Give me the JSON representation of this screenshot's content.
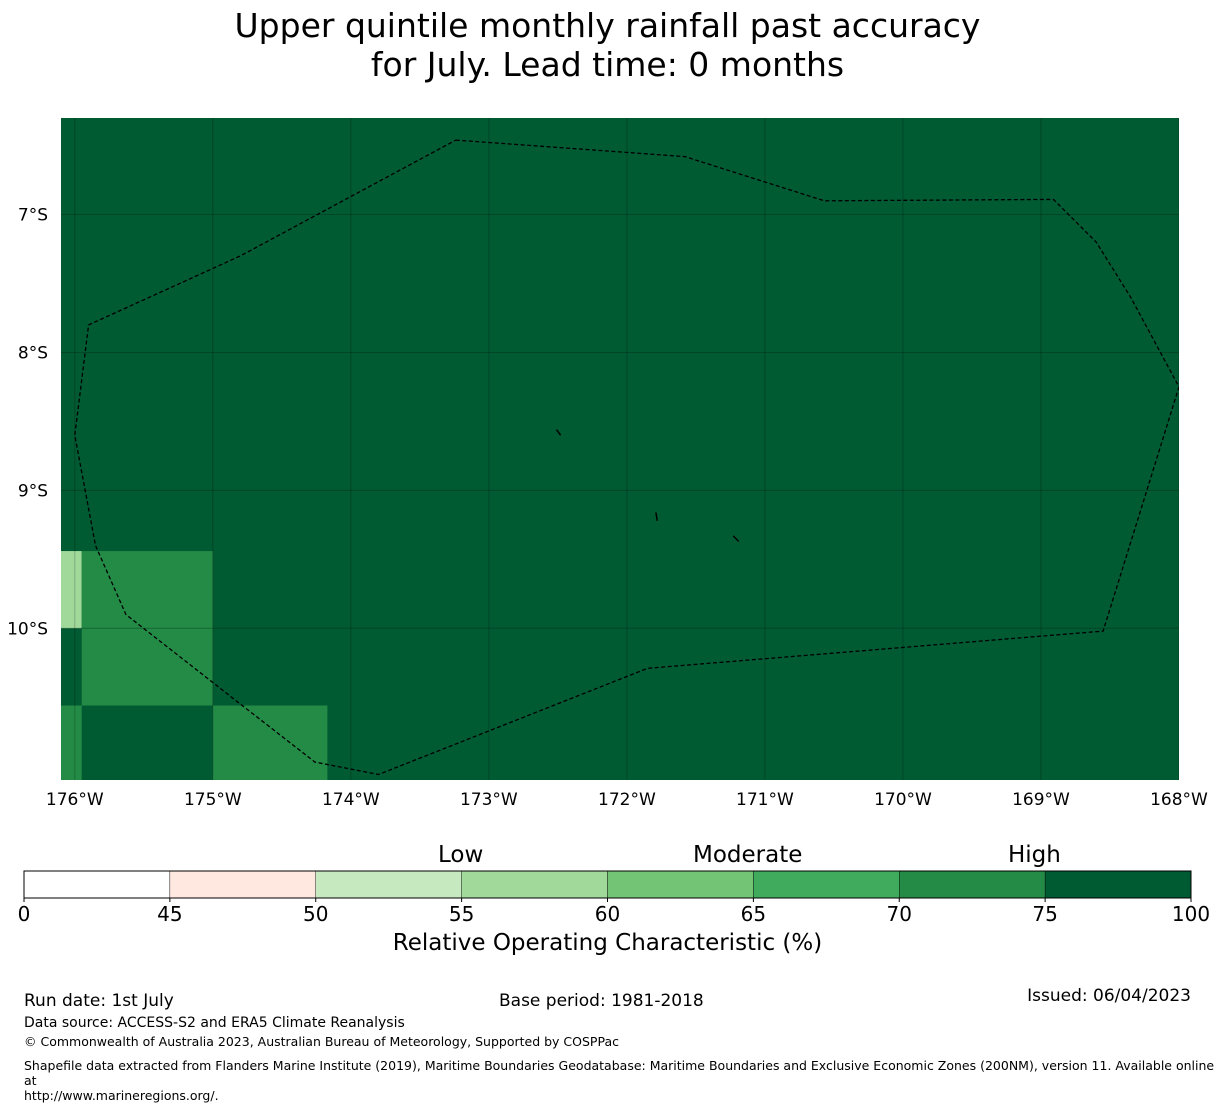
{
  "title": {
    "line1": "Upper quintile monthly rainfall past accuracy",
    "line2": "for July. Lead time: 0 months"
  },
  "map": {
    "lon_range": [
      -176.1,
      -168.0
    ],
    "lat_range": [
      -11.1,
      -6.3
    ],
    "lon_ticks": [
      "176°W",
      "175°W",
      "174°W",
      "173°W",
      "172°W",
      "171°W",
      "170°W",
      "169°W",
      "168°W"
    ],
    "lat_ticks": [
      "7°S",
      "8°S",
      "9°S",
      "10°S"
    ],
    "background_color": "#005a32",
    "cells": [
      {
        "lon": [
          -176.1,
          -175.95
        ],
        "lat": [
          -10.0,
          -9.44
        ],
        "color": "#a1d99b"
      },
      {
        "lon": [
          -175.95,
          -175.0
        ],
        "lat": [
          -10.0,
          -9.44
        ],
        "color": "#238b45"
      },
      {
        "lon": [
          -175.95,
          -175.0
        ],
        "lat": [
          -10.56,
          -10.0
        ],
        "color": "#238b45"
      },
      {
        "lon": [
          -176.1,
          -175.95
        ],
        "lat": [
          -11.1,
          -10.56
        ],
        "color": "#238b45"
      },
      {
        "lon": [
          -175.0,
          -174.17
        ],
        "lat": [
          -11.1,
          -10.56
        ],
        "color": "#238b45"
      }
    ],
    "eez_boundary": [
      [
        -173.24,
        -6.46
      ],
      [
        -171.58,
        -6.58
      ],
      [
        -170.57,
        -6.9
      ],
      [
        -168.91,
        -6.89
      ],
      [
        -168.6,
        -7.2
      ],
      [
        -168.35,
        -7.6
      ],
      [
        -168.0,
        -8.25
      ],
      [
        -168.55,
        -10.02
      ],
      [
        -171.85,
        -10.29
      ],
      [
        -173.8,
        -11.06
      ],
      [
        -174.26,
        -10.97
      ],
      [
        -174.8,
        -10.55
      ],
      [
        -175.63,
        -9.9
      ],
      [
        -175.85,
        -9.4
      ],
      [
        -176.0,
        -8.6
      ],
      [
        -175.9,
        -7.8
      ],
      [
        -174.8,
        -7.3
      ],
      [
        -173.24,
        -6.46
      ]
    ]
  },
  "colorbar": {
    "ticks": [
      "0",
      "45",
      "50",
      "55",
      "60",
      "65",
      "70",
      "75",
      "100"
    ],
    "colors": [
      "#ffffff",
      "#fee8e0",
      "#c7e9c0",
      "#a1d99b",
      "#74c476",
      "#41ab5d",
      "#238b45",
      "#005a32"
    ],
    "categories": [
      "Low",
      "Moderate",
      "High"
    ],
    "label": "Relative Operating Characteristic (%)"
  },
  "footer": {
    "run_date": "Run date: 1st July",
    "base_period": "Base period: 1981-2018",
    "issued": "Issued: 06/04/2023",
    "data_source": "Data source: ACCESS-S2 and ERA5 Climate Reanalysis",
    "copyright": "© Commonwealth of Australia 2023, Australian Bureau of Meteorology, Supported by COSPPac",
    "shapefile_line1": "Shapefile data extracted from Flanders Marine Institute (2019), Maritime Boundaries Geodatabase: Maritime Boundaries and Exclusive Economic Zones (200NM), version 11. Available online at",
    "shapefile_line2": "http://www.marineregions.org/."
  }
}
